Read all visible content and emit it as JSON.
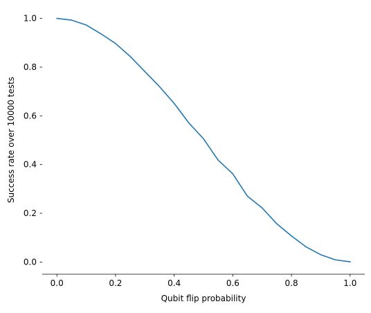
{
  "chart_data": {
    "type": "line",
    "title": "",
    "xlabel": "Qubit flip probability",
    "ylabel": "Success rate over 10000 tests",
    "xlim": [
      -0.05,
      1.05
    ],
    "ylim": [
      -0.05,
      1.05
    ],
    "x_ticks": [
      0.0,
      0.2,
      0.4,
      0.6,
      0.8,
      1.0
    ],
    "y_ticks": [
      0.0,
      0.2,
      0.4,
      0.6,
      0.8,
      1.0
    ],
    "x_tick_labels": [
      "0.0",
      "0.2",
      "0.4",
      "0.6",
      "0.8",
      "1.0"
    ],
    "y_tick_labels": [
      "0.0",
      "0.2",
      "0.4",
      "0.6",
      "0.8",
      "1.0"
    ],
    "grid": false,
    "legend": "none",
    "series": [
      {
        "color": "#1f77b4",
        "x": [
          0.0,
          0.05,
          0.1,
          0.15,
          0.2,
          0.25,
          0.3,
          0.35,
          0.4,
          0.45,
          0.5,
          0.55,
          0.6,
          0.65,
          0.7,
          0.75,
          0.8,
          0.85,
          0.9,
          0.95,
          1.0
        ],
        "y": [
          1.0,
          0.993,
          0.973,
          0.937,
          0.897,
          0.844,
          0.782,
          0.72,
          0.651,
          0.571,
          0.506,
          0.418,
          0.362,
          0.27,
          0.222,
          0.157,
          0.107,
          0.062,
          0.03,
          0.009,
          0.001
        ]
      }
    ]
  }
}
